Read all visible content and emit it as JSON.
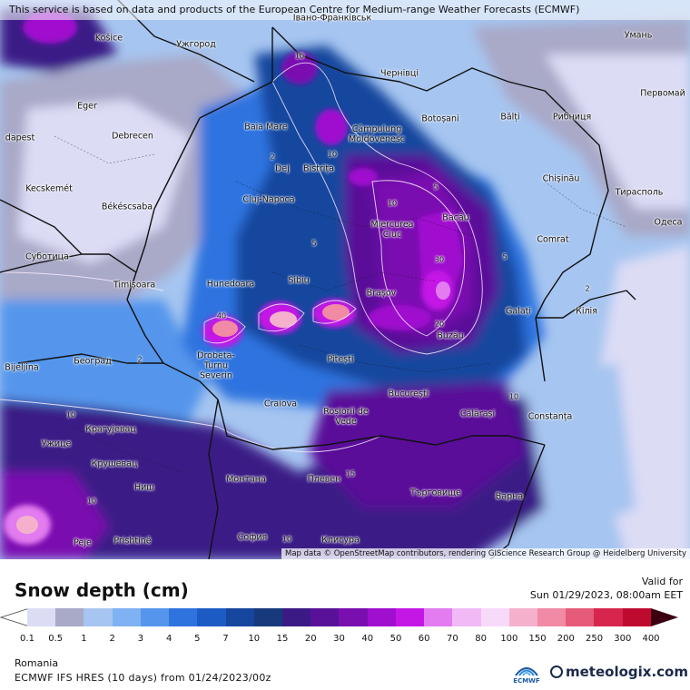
{
  "map": {
    "disclaimer": "This service is based on data and products of the European Centre for Medium-range Weather Forecasts (ECMWF)",
    "attribution": "Map data © OpenStreetMap contributors, rendering GIScience Research Group @ Heidelberg University",
    "places": [
      {
        "name": "Košice"
      },
      {
        "name": "Ужгород"
      },
      {
        "name": "Івано-Франківськ"
      },
      {
        "name": "Умань"
      },
      {
        "name": "Чернівці"
      },
      {
        "name": "Eger"
      },
      {
        "name": "Baia Mare"
      },
      {
        "name": "Botoșani"
      },
      {
        "name": "Bălți"
      },
      {
        "name": "Рибниця"
      },
      {
        "name": "Первомай"
      },
      {
        "name": "dapest"
      },
      {
        "name": "Debrecen"
      },
      {
        "name": "Câmpulung Moldovenesc"
      },
      {
        "name": "Dej"
      },
      {
        "name": "Bistrița"
      },
      {
        "name": "Kecskemét"
      },
      {
        "name": "Chișinău"
      },
      {
        "name": "Тирасполь"
      },
      {
        "name": "Cluj-Napoca"
      },
      {
        "name": "Békéscsaba"
      },
      {
        "name": "Miercurea Ciuc"
      },
      {
        "name": "Bacău"
      },
      {
        "name": "Одеса"
      },
      {
        "name": "Суботица"
      },
      {
        "name": "Comrat"
      },
      {
        "name": "Sibiu"
      },
      {
        "name": "Timișoara"
      },
      {
        "name": "Hunedoara"
      },
      {
        "name": "Brașov"
      },
      {
        "name": "Galați"
      },
      {
        "name": "Кілія"
      },
      {
        "name": "Buzău"
      },
      {
        "name": "Bijeljina"
      },
      {
        "name": "Београд"
      },
      {
        "name": "Drobeta-Turnu Severin"
      },
      {
        "name": "Pitești"
      },
      {
        "name": "Craiova"
      },
      {
        "name": "București"
      },
      {
        "name": "Roșiorii de Vede"
      },
      {
        "name": "Călărași"
      },
      {
        "name": "Constanța"
      },
      {
        "name": "Крагујевац"
      },
      {
        "name": "Ужице"
      },
      {
        "name": "Крушевац"
      },
      {
        "name": "Монтана"
      },
      {
        "name": "Плевен"
      },
      {
        "name": "Ниш"
      },
      {
        "name": "Търговище"
      },
      {
        "name": "Варна"
      },
      {
        "name": "Peje"
      },
      {
        "name": "Prishtinë"
      },
      {
        "name": "София"
      },
      {
        "name": "Клисура"
      }
    ],
    "contour_labels": [
      "2",
      "10",
      "10",
      "5",
      "5",
      "10",
      "30",
      "40",
      "5",
      "10",
      "20",
      "2",
      "2",
      "15",
      "10",
      "10",
      "10"
    ]
  },
  "panel": {
    "title": "Snow depth (cm)",
    "valid_label": "Valid for",
    "valid_time": "Sun 01/29/2023, 08:00am EET",
    "region": "Romania",
    "model": "ECMWF IFS HRES (10 days) from 01/24/2023/00z",
    "ecmwf_label": "ECMWF",
    "brand": "meteologix.com"
  },
  "legend": {
    "ticks": [
      "0.1",
      "0.5",
      "1",
      "2",
      "3",
      "4",
      "5",
      "7",
      "10",
      "15",
      "20",
      "30",
      "40",
      "50",
      "60",
      "70",
      "80",
      "100",
      "150",
      "200",
      "250",
      "300",
      "400"
    ],
    "colors": [
      "#dcdcf5",
      "#a9a9c8",
      "#a6c5f0",
      "#7fb2f2",
      "#5596ec",
      "#2f73df",
      "#1d5bc4",
      "#16469e",
      "#163a7c",
      "#3b1a86",
      "#5a1199",
      "#7a0fb0",
      "#a00fcf",
      "#c417e6",
      "#e27cf0",
      "#f2b9f7",
      "#f7d9fa",
      "#f5b1cc",
      "#f08aa5",
      "#e65a7a",
      "#d7264d",
      "#bf0a30",
      "#9a0022",
      "#7a0018",
      "#5c0012"
    ]
  }
}
